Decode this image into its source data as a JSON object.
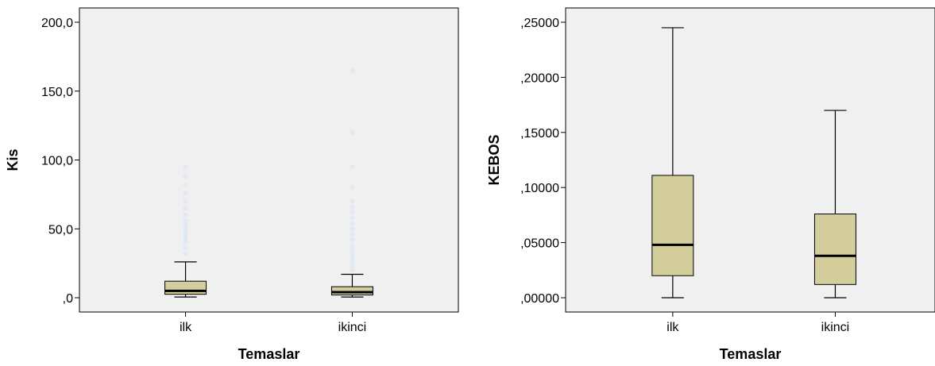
{
  "chart_data": [
    {
      "type": "boxplot",
      "xlabel": "Temaslar",
      "ylabel": "Kis",
      "ylim": [
        0,
        200
      ],
      "y_ticks": [
        0,
        50,
        100,
        150,
        200
      ],
      "y_tick_labels": [
        ",0",
        "50,0",
        "100,0",
        "150,0",
        "200,0"
      ],
      "categories": [
        "ilk",
        "ikinci"
      ],
      "box_color": "#d4cd9c",
      "boxes": [
        {
          "category": "ilk",
          "min": 0.5,
          "q1": 2.5,
          "median": 5,
          "q3": 12,
          "max": 26,
          "outliers": [
            32,
            36,
            40,
            42,
            44,
            46,
            48,
            50,
            53,
            56,
            60,
            65,
            70,
            76,
            82,
            88,
            95
          ]
        },
        {
          "category": "ikinci",
          "min": 0.5,
          "q1": 2,
          "median": 4,
          "q3": 8,
          "max": 17,
          "outliers": [
            20,
            23,
            26,
            29,
            32,
            35,
            38,
            42,
            46,
            50,
            54,
            58,
            62,
            66,
            70,
            80,
            95,
            120,
            165
          ]
        }
      ]
    },
    {
      "type": "boxplot",
      "xlabel": "Temaslar",
      "ylabel": "KEBOS",
      "ylim": [
        0,
        0.25
      ],
      "y_ticks": [
        0,
        0.05,
        0.1,
        0.15,
        0.2,
        0.25
      ],
      "y_tick_labels": [
        ",00000",
        ",05000",
        ",10000",
        ",15000",
        ",20000",
        ",25000"
      ],
      "categories": [
        "ilk",
        "ikinci"
      ],
      "box_color": "#d4cd9c",
      "boxes": [
        {
          "category": "ilk",
          "min": 0.0,
          "q1": 0.02,
          "median": 0.048,
          "q3": 0.111,
          "max": 0.245,
          "outliers": []
        },
        {
          "category": "ikinci",
          "min": 0.0,
          "q1": 0.012,
          "median": 0.038,
          "q3": 0.076,
          "max": 0.17,
          "outliers": []
        }
      ]
    }
  ]
}
